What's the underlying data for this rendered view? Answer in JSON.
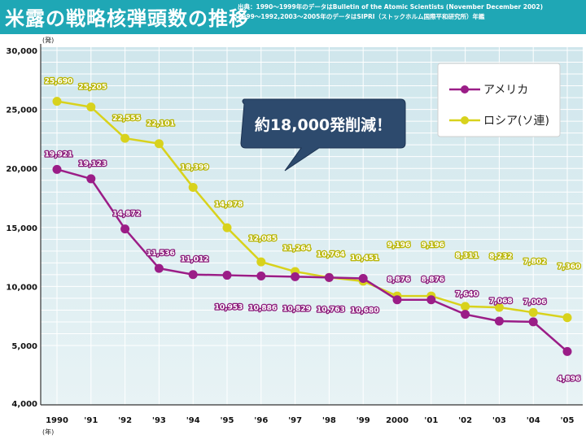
{
  "header": {
    "title": "米露の戦略核弾頭数の推移",
    "source_line1": "出典：1990〜1999年のデータはBulletin of the Atomic Scientists (November December 2002)",
    "source_line2": "1999〜1992,2003〜2005年のデータはSIPRI（ストックホルム国際平和研究所）年鑑"
  },
  "chart_data": {
    "type": "line",
    "title": "米露の戦略核弾頭数の推移",
    "y_unit": "(発)",
    "x_unit": "(年)",
    "categories": [
      "1990",
      "'91",
      "'92",
      "'93",
      "'94",
      "'95",
      "'96",
      "'97",
      "'98",
      "'99",
      "2000",
      "'01",
      "'02",
      "'03",
      "'04",
      "'05"
    ],
    "ylim": [
      4000,
      30000
    ],
    "y_ticks": [
      "4,000",
      "5,000",
      "10,000",
      "15,000",
      "20,000",
      "25,000",
      "30,000"
    ],
    "y_tick_values": [
      4000,
      5000,
      10000,
      15000,
      20000,
      25000,
      30000
    ],
    "grid": true,
    "legend_position": "top-right",
    "series": [
      {
        "name": "アメリカ",
        "color": "#9b1d87",
        "values": [
          19921,
          19123,
          14872,
          11536,
          11012,
          10953,
          10886,
          10829,
          10763,
          10680,
          8876,
          8876,
          7640,
          7068,
          7006,
          4896
        ],
        "labels": [
          "19,921",
          "19,123",
          "14,872",
          "11,536",
          "11,012",
          "10,953",
          "10,886",
          "10,829",
          "10,763",
          "10,680",
          "8,876",
          "8,876",
          "7,640",
          "7,068",
          "7,006",
          "4,896"
        ]
      },
      {
        "name": "ロシア(ソ連)",
        "color": "#d8d21c",
        "values": [
          25690,
          25205,
          22555,
          22101,
          18399,
          14978,
          12085,
          11264,
          10764,
          10451,
          9196,
          9196,
          8311,
          8232,
          7802,
          7360
        ],
        "labels": [
          "25,690",
          "25,205",
          "22,555",
          "22,101",
          "18,399",
          "14,978",
          "12,085",
          "11,264",
          "10,764",
          "10,451",
          "9,196",
          "9,196",
          "8,311",
          "8,232",
          "7,802",
          "7,360"
        ]
      }
    ],
    "annotation": "約18,000発削減！"
  }
}
